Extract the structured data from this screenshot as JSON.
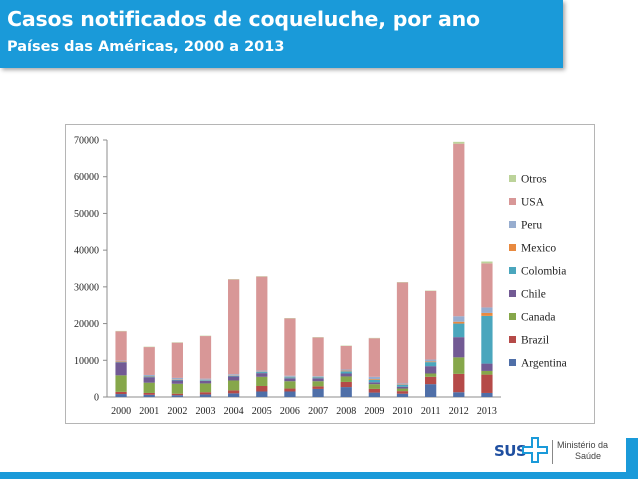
{
  "header": {
    "title": "Casos notificados de coqueluche, por ano",
    "subtitle": "Países das Américas, 2000 a 2013"
  },
  "footer": {
    "logo_text": "SUS",
    "ministry_line1": "Ministério da",
    "ministry_line2": "Saúde"
  },
  "colors": {
    "header_bg": "#1a9ad9",
    "Argentina": "#4f6fa8",
    "Brazil": "#b54a48",
    "Canada": "#86a74a",
    "Chile": "#725a94",
    "Colombia": "#4aa6bd",
    "Mexico": "#e8893f",
    "Peru": "#97adcf",
    "USA": "#d89797",
    "Otros": "#bcd39a"
  },
  "chart_data": {
    "type": "bar",
    "stacked": true,
    "title": "",
    "xlabel": "",
    "ylabel": "",
    "ylim": [
      0,
      70000
    ],
    "yticks": [
      0,
      10000,
      20000,
      30000,
      40000,
      50000,
      60000,
      70000
    ],
    "grid": false,
    "legend_position": "right",
    "categories": [
      "2000",
      "2001",
      "2002",
      "2003",
      "2004",
      "2005",
      "2006",
      "2007",
      "2008",
      "2009",
      "2010",
      "2011",
      "2012",
      "2013"
    ],
    "series": [
      {
        "name": "Argentina",
        "values": [
          800,
          600,
          500,
          700,
          1000,
          1500,
          1500,
          2200,
          2700,
          1200,
          900,
          3500,
          1300,
          1100
        ]
      },
      {
        "name": "Brazil",
        "values": [
          600,
          500,
          400,
          600,
          800,
          1500,
          800,
          700,
          1400,
          1000,
          700,
          2000,
          5000,
          5000
        ]
      },
      {
        "name": "Canada",
        "values": [
          4500,
          2800,
          2700,
          2400,
          2700,
          2500,
          2000,
          1400,
          1500,
          1300,
          700,
          900,
          4500,
          1000
        ]
      },
      {
        "name": "Chile",
        "values": [
          3500,
          1500,
          900,
          700,
          1100,
          1000,
          800,
          800,
          800,
          500,
          500,
          2000,
          5500,
          2000
        ]
      },
      {
        "name": "Colombia",
        "values": [
          100,
          200,
          200,
          200,
          200,
          300,
          300,
          300,
          600,
          700,
          500,
          1100,
          3700,
          13000
        ]
      },
      {
        "name": "Mexico",
        "values": [
          200,
          100,
          100,
          100,
          100,
          100,
          100,
          100,
          200,
          200,
          100,
          200,
          500,
          800
        ]
      },
      {
        "name": "Peru",
        "values": [
          200,
          300,
          400,
          300,
          300,
          300,
          300,
          200,
          300,
          600,
          300,
          500,
          1500,
          1500
        ]
      },
      {
        "name": "USA",
        "values": [
          8000,
          7600,
          9600,
          11600,
          25800,
          25600,
          15600,
          10500,
          6400,
          10500,
          27500,
          18700,
          47000,
          12000
        ]
      },
      {
        "name": "Otros",
        "values": [
          100,
          100,
          100,
          100,
          100,
          100,
          100,
          100,
          100,
          100,
          100,
          100,
          500,
          500
        ]
      }
    ]
  }
}
